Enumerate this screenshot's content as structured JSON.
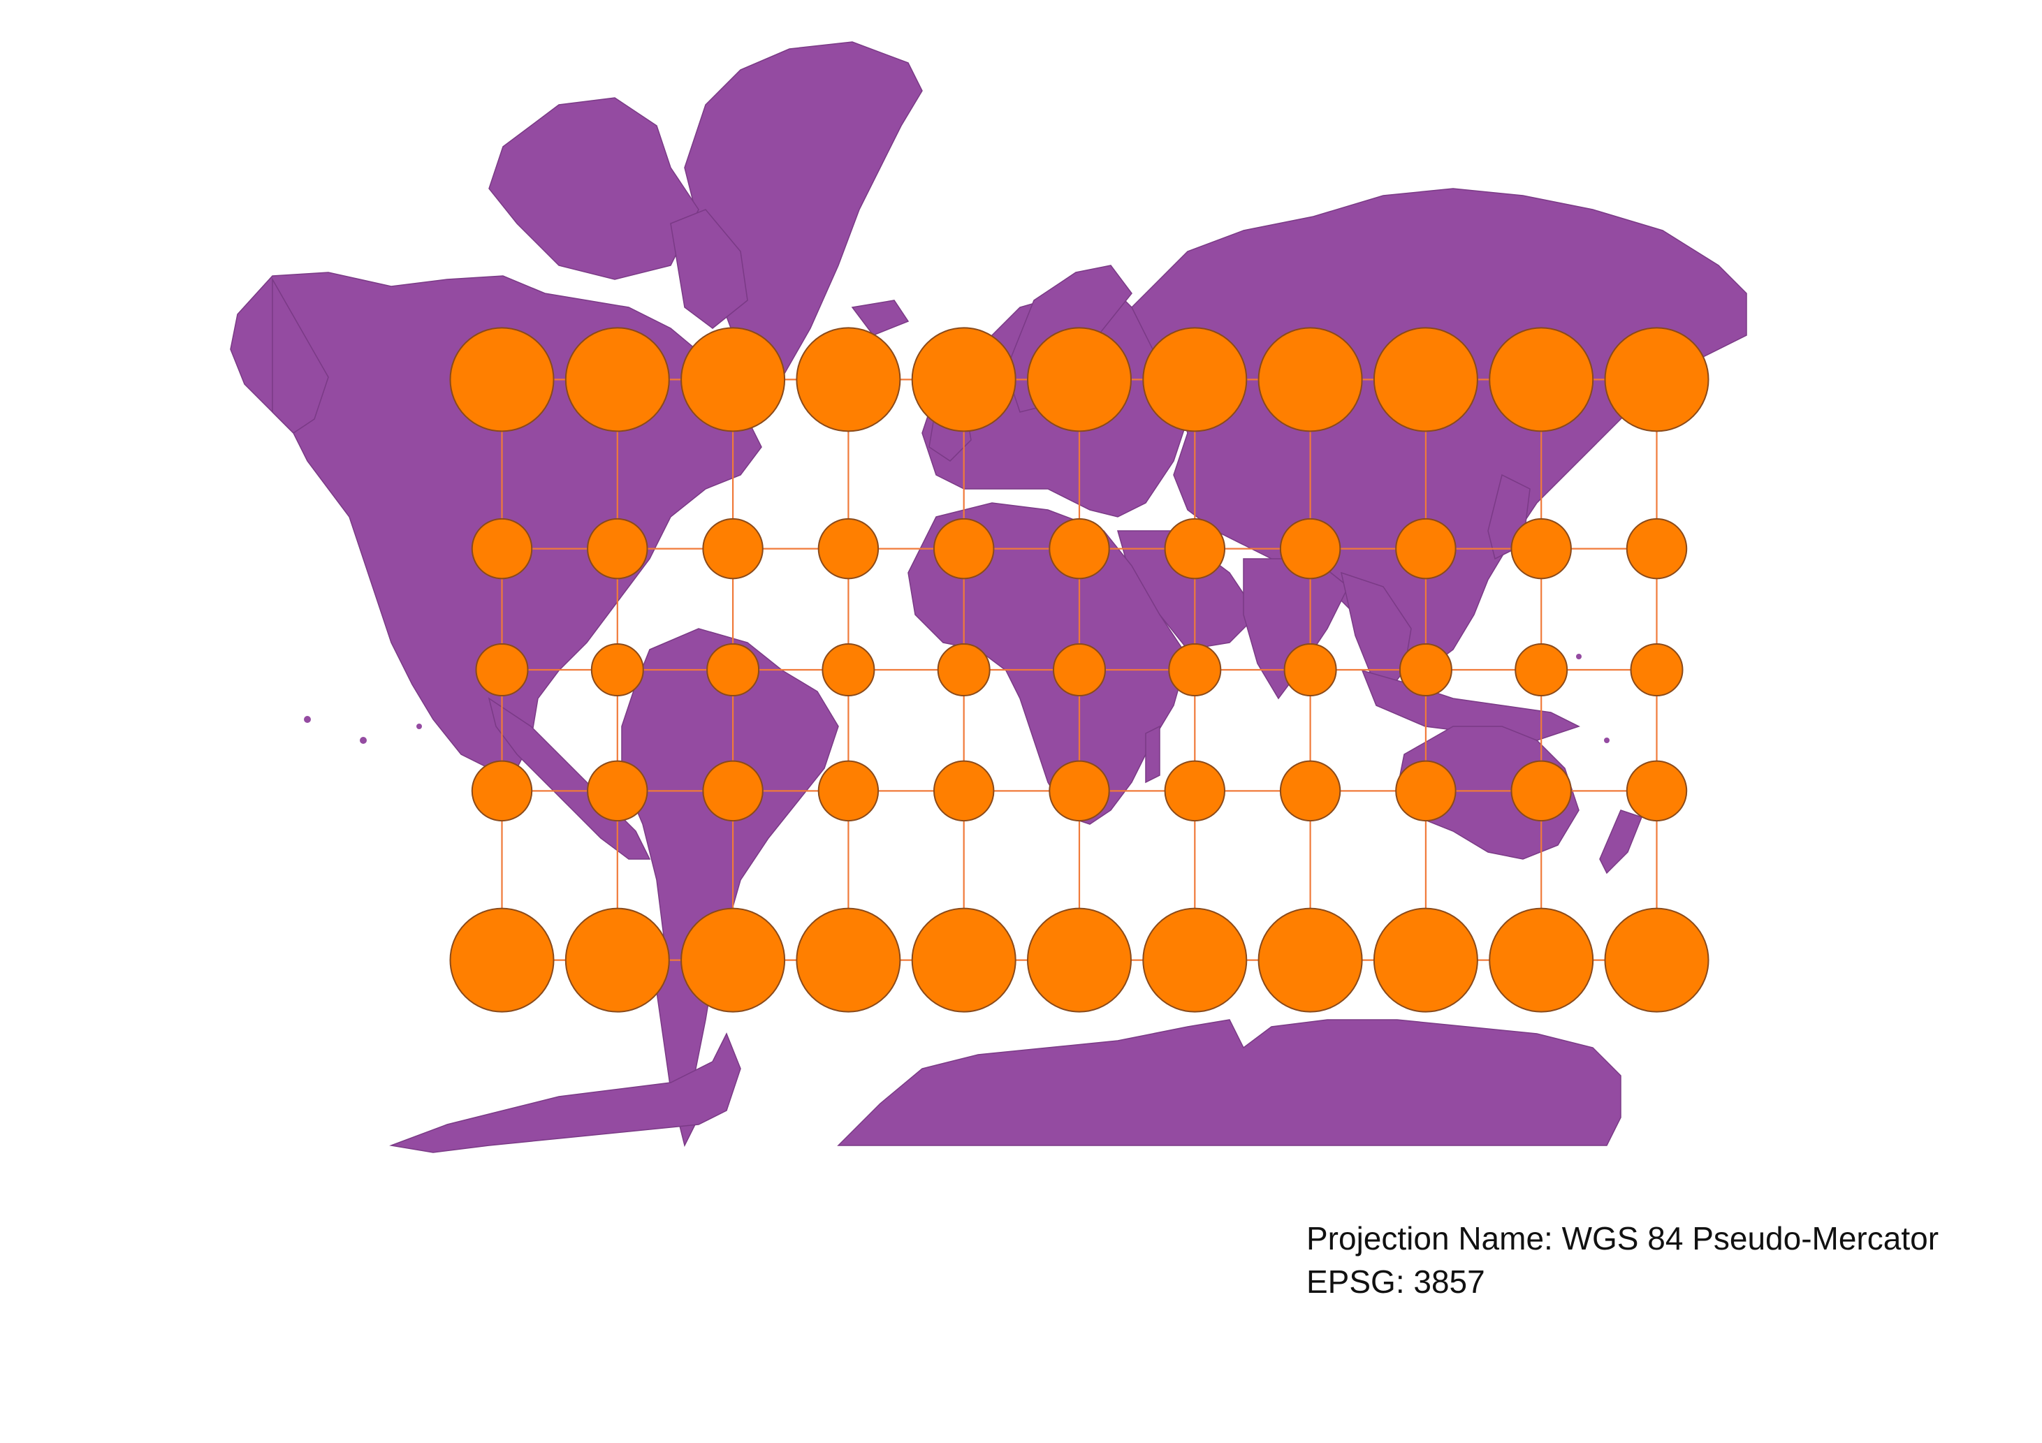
{
  "map": {
    "projection_name_line": "Projection Name: WGS 84 Pseudo-Mercator",
    "epsg_line": "EPSG: 3857",
    "land_color": "#944ba1",
    "indicatrix_color": "#ff7f00",
    "graticule_color": "#f07a3a",
    "graticule": {
      "longitudes": [
        -150,
        -120,
        -90,
        -60,
        -30,
        0,
        30,
        60,
        90,
        120,
        150
      ],
      "latitudes": [
        60,
        30,
        0,
        -30,
        -60
      ]
    },
    "indicatrix_circle_radius_km": 500
  }
}
